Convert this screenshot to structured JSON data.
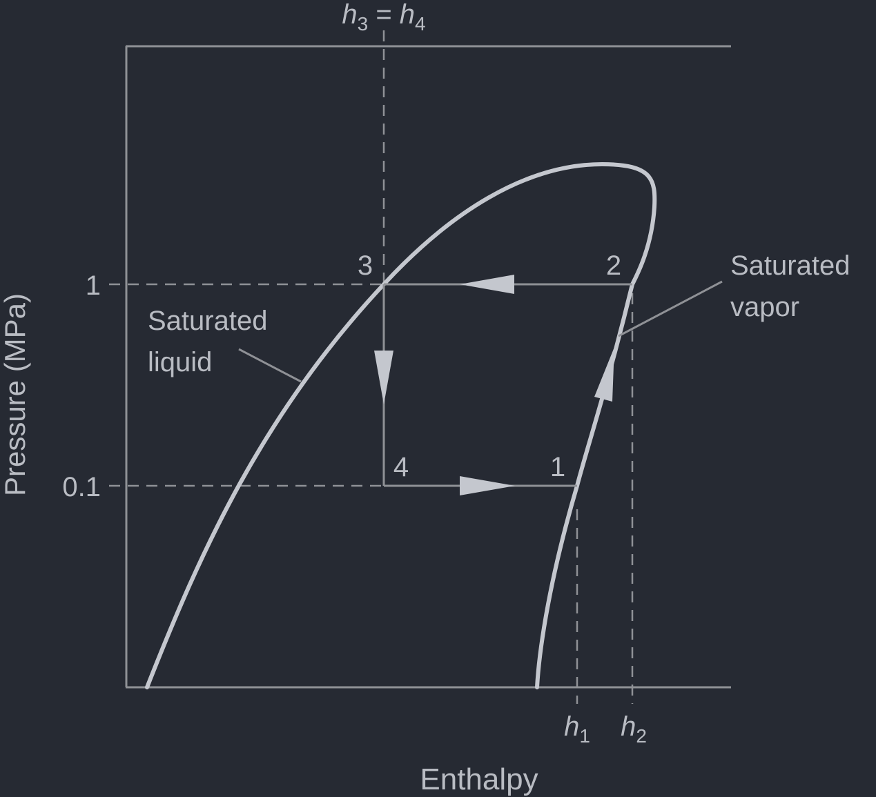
{
  "diagram": {
    "top_label": {
      "h_left": "h",
      "sub_left": "3",
      "eq": " = ",
      "h_right": "h",
      "sub_right": "4"
    },
    "y_axis_label": "Pressure (MPa)",
    "x_axis_label": "Enthalpy",
    "y_ticks": {
      "high": "1",
      "low": "0.1"
    },
    "state_points": {
      "p1": "1",
      "p2": "2",
      "p3": "3",
      "p4": "4"
    },
    "x_markers": {
      "h1": {
        "h": "h",
        "sub": "1"
      },
      "h2": {
        "h": "h",
        "sub": "2"
      }
    },
    "annotations": {
      "sat_liquid_line1": "Saturated",
      "sat_liquid_line2": "liquid",
      "sat_vapor_line1": "Saturated",
      "sat_vapor_line2": "vapor"
    },
    "colors": {
      "background": "#262a33",
      "curve": "#c4c7ce",
      "lines": "#8f9196",
      "text": "#b9bcc3"
    }
  }
}
